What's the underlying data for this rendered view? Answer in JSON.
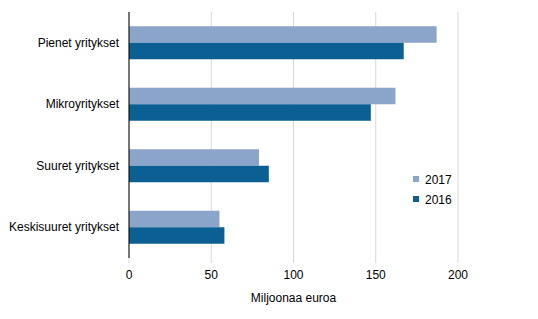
{
  "chart_data": {
    "type": "bar",
    "orientation": "horizontal",
    "categories": [
      "Pienet yritykset",
      "Mikroyritykset",
      "Suuret yritykset",
      "Keskisuuret yritykset"
    ],
    "series": [
      {
        "name": "2017",
        "color": "#8aa5c9",
        "values": [
          187,
          162,
          79,
          55
        ]
      },
      {
        "name": "2016",
        "color": "#0c5f93",
        "values": [
          167,
          147,
          85,
          58
        ]
      }
    ],
    "x_label": "Miljoonaa euroa",
    "xlim": [
      0,
      200
    ],
    "xticks": [
      0,
      50,
      100,
      150,
      200
    ],
    "grid": true,
    "legend": "right"
  }
}
